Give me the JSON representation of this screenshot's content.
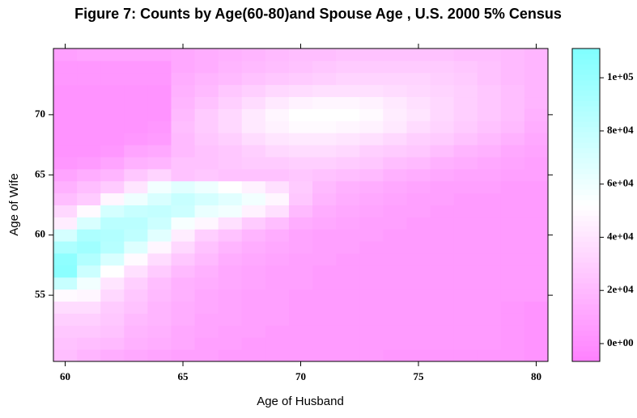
{
  "chart_data": {
    "type": "heatmap",
    "title": "Figure 7: Counts by Age(60-80)and Spouse Age , U.S. 2000 5% Census",
    "x_label": "Age of Husband",
    "y_label": "Age of Wife",
    "x": [
      60,
      61,
      62,
      63,
      64,
      65,
      66,
      67,
      68,
      69,
      70,
      71,
      72,
      73,
      74,
      75,
      76,
      77,
      78,
      79,
      80
    ],
    "y": [
      50,
      51,
      52,
      53,
      54,
      55,
      56,
      57,
      58,
      59,
      60,
      61,
      62,
      63,
      64,
      65,
      66,
      67,
      68,
      69,
      70,
      71,
      72,
      73,
      74,
      75
    ],
    "xlim": [
      59.5,
      80.5
    ],
    "ylim": [
      49.5,
      75.5
    ],
    "xticks": [
      60,
      65,
      70,
      75,
      80
    ],
    "yticks": [
      55,
      60,
      65,
      70
    ],
    "zlim": [
      -6700,
      111000
    ],
    "zticks": [
      {
        "value": 0,
        "label": "0e+00"
      },
      {
        "value": 20000,
        "label": "2e+04"
      },
      {
        "value": 40000,
        "label": "4e+04"
      },
      {
        "value": 60000,
        "label": "6e+04"
      },
      {
        "value": 80000,
        "label": "8e+04"
      },
      {
        "value": 100000,
        "label": "1e+05"
      }
    ],
    "colors": [
      "#ff80ff",
      "#ffffff",
      "#80ffff"
    ],
    "z": [
      [
        22000,
        18000,
        14000,
        12000,
        10000,
        8000,
        8000,
        6000,
        6000,
        6000,
        6000,
        6000,
        6000,
        6000,
        4000,
        4000,
        4000,
        4000,
        4000,
        4000,
        2000
      ],
      [
        24000,
        22000,
        20000,
        16000,
        14000,
        12000,
        8000,
        8000,
        6000,
        6000,
        6000,
        6000,
        6000,
        6000,
        6000,
        6000,
        6000,
        6000,
        6000,
        4000,
        2000
      ],
      [
        26000,
        26000,
        24000,
        18000,
        16000,
        12000,
        10000,
        8000,
        8000,
        6000,
        6000,
        6000,
        6000,
        6000,
        6000,
        6000,
        6000,
        6000,
        6000,
        4000,
        2000
      ],
      [
        30000,
        30000,
        26000,
        20000,
        18000,
        14000,
        10000,
        10000,
        8000,
        8000,
        6000,
        6000,
        6000,
        6000,
        6000,
        6000,
        6000,
        6000,
        6000,
        4000,
        2000
      ],
      [
        36000,
        36000,
        28000,
        24000,
        18000,
        14000,
        12000,
        10000,
        8000,
        8000,
        6000,
        6000,
        6000,
        6000,
        6000,
        6000,
        6000,
        6000,
        6000,
        4000,
        2000
      ],
      [
        50000,
        48000,
        34000,
        26000,
        20000,
        16000,
        12000,
        10000,
        8000,
        8000,
        6000,
        6000,
        6000,
        6000,
        6000,
        6000,
        6000,
        6000,
        6000,
        6000,
        6000
      ],
      [
        78000,
        58000,
        40000,
        30000,
        22000,
        16000,
        14000,
        12000,
        10000,
        8000,
        8000,
        6000,
        6000,
        6000,
        6000,
        6000,
        6000,
        6000,
        6000,
        6000,
        6000
      ],
      [
        106000,
        76000,
        52000,
        38000,
        28000,
        20000,
        16000,
        12000,
        10000,
        8000,
        8000,
        6000,
        6000,
        6000,
        6000,
        6000,
        6000,
        6000,
        6000,
        6000,
        6000
      ],
      [
        104000,
        88000,
        70000,
        50000,
        36000,
        26000,
        20000,
        14000,
        12000,
        10000,
        8000,
        8000,
        6000,
        6000,
        6000,
        6000,
        6000,
        6000,
        6000,
        6000,
        6000
      ],
      [
        90000,
        96000,
        86000,
        68000,
        48000,
        34000,
        24000,
        18000,
        14000,
        12000,
        10000,
        8000,
        8000,
        6000,
        6000,
        6000,
        6000,
        6000,
        6000,
        6000,
        6000
      ],
      [
        72000,
        90000,
        88000,
        82000,
        66000,
        44000,
        30000,
        24000,
        18000,
        14000,
        10000,
        8000,
        8000,
        8000,
        6000,
        6000,
        6000,
        6000,
        6000,
        6000,
        6000
      ],
      [
        44000,
        70000,
        84000,
        84000,
        76000,
        56000,
        48000,
        38000,
        28000,
        22000,
        14000,
        12000,
        10000,
        8000,
        8000,
        6000,
        6000,
        6000,
        6000,
        6000,
        6000
      ],
      [
        34000,
        50000,
        72000,
        78000,
        80000,
        76000,
        62000,
        58000,
        46000,
        38000,
        20000,
        14000,
        12000,
        10000,
        8000,
        8000,
        6000,
        6000,
        6000,
        6000,
        6000
      ],
      [
        22000,
        28000,
        48000,
        60000,
        70000,
        78000,
        72000,
        66000,
        58000,
        48000,
        26000,
        18000,
        14000,
        12000,
        10000,
        8000,
        8000,
        6000,
        6000,
        6000,
        6000
      ],
      [
        16000,
        22000,
        28000,
        40000,
        58000,
        66000,
        60000,
        52000,
        46000,
        38000,
        28000,
        20000,
        16000,
        14000,
        12000,
        10000,
        8000,
        8000,
        8000,
        6000,
        6000
      ],
      [
        10000,
        14000,
        18000,
        26000,
        32000,
        24000,
        26000,
        24000,
        24000,
        24000,
        26000,
        24000,
        22000,
        20000,
        16000,
        14000,
        12000,
        10000,
        10000,
        8000,
        8000
      ],
      [
        4000,
        6000,
        10000,
        16000,
        18000,
        24000,
        24000,
        26000,
        28000,
        28000,
        30000,
        30000,
        28000,
        26000,
        22000,
        20000,
        16000,
        14000,
        12000,
        10000,
        8000
      ],
      [
        2000,
        2000,
        4000,
        10000,
        12000,
        20000,
        24000,
        26000,
        30000,
        34000,
        36000,
        36000,
        34000,
        30000,
        28000,
        26000,
        22000,
        18000,
        16000,
        12000,
        10000
      ],
      [
        2000,
        2000,
        2000,
        4000,
        6000,
        20000,
        26000,
        30000,
        36000,
        40000,
        42000,
        42000,
        40000,
        38000,
        34000,
        30000,
        28000,
        24000,
        20000,
        16000,
        12000
      ],
      [
        2000,
        2000,
        2000,
        2000,
        4000,
        22000,
        28000,
        34000,
        42000,
        46000,
        50000,
        50000,
        48000,
        46000,
        42000,
        36000,
        32000,
        28000,
        24000,
        20000,
        14000
      ],
      [
        2000,
        2000,
        2000,
        2000,
        2000,
        20000,
        28000,
        34000,
        42000,
        48000,
        52000,
        52000,
        52000,
        50000,
        44000,
        40000,
        34000,
        30000,
        26000,
        22000,
        16000
      ],
      [
        2000,
        2000,
        2000,
        2000,
        2000,
        18000,
        24000,
        30000,
        36000,
        42000,
        46000,
        48000,
        48000,
        46000,
        42000,
        38000,
        34000,
        30000,
        26000,
        22000,
        18000
      ],
      [
        2000,
        2000,
        2000,
        2000,
        2000,
        16000,
        20000,
        26000,
        30000,
        34000,
        36000,
        38000,
        38000,
        38000,
        36000,
        34000,
        32000,
        30000,
        26000,
        22000,
        18000
      ],
      [
        4000,
        4000,
        4000,
        4000,
        4000,
        14000,
        18000,
        20000,
        24000,
        26000,
        28000,
        30000,
        32000,
        32000,
        32000,
        32000,
        30000,
        28000,
        24000,
        20000,
        18000
      ],
      [
        4000,
        4000,
        4000,
        4000,
        4000,
        12000,
        14000,
        18000,
        20000,
        22000,
        24000,
        26000,
        28000,
        28000,
        28000,
        28000,
        28000,
        26000,
        24000,
        20000,
        18000
      ],
      [
        8000,
        10000,
        10000,
        10000,
        10000,
        12000,
        14000,
        16000,
        18000,
        20000,
        22000,
        22000,
        24000,
        24000,
        24000,
        24000,
        24000,
        22000,
        22000,
        20000,
        18000
      ]
    ]
  }
}
